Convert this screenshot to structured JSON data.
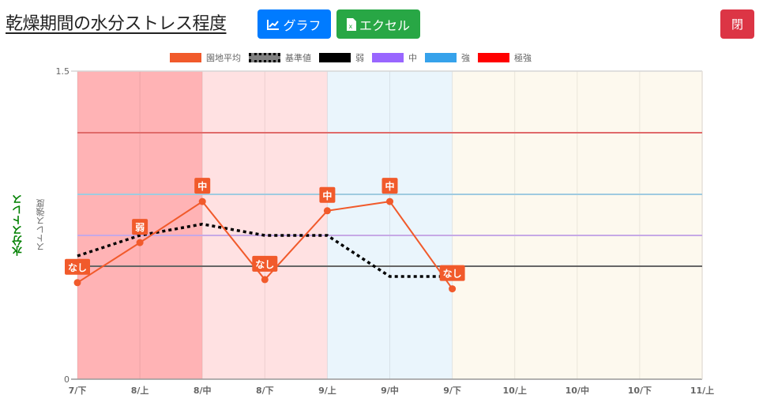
{
  "header": {
    "title": "乾燥期間の水分ストレス程度",
    "graph_button": "グラフ",
    "excel_button": "エクセル",
    "close_button": "閉",
    "colors": {
      "graph": "#007bff",
      "excel": "#28a745",
      "close": "#dc3545"
    }
  },
  "legend": [
    {
      "label": "園地平均",
      "color": "#f15a2b",
      "style": "solid"
    },
    {
      "label": "基準値",
      "color": "#808080",
      "style": "dotted-border"
    },
    {
      "label": "弱",
      "color": "#000000",
      "style": "solid"
    },
    {
      "label": "中",
      "color": "#9966ff",
      "style": "solid"
    },
    {
      "label": "強",
      "color": "#36a2eb",
      "style": "solid"
    },
    {
      "label": "極強",
      "color": "#ff0000",
      "style": "solid"
    }
  ],
  "axis": {
    "y_outer_label": "水分ストレス",
    "y_inner_label": "ストレス強度",
    "y_max_label": "1.5",
    "y_min_label": "0"
  },
  "chart_data": {
    "type": "line",
    "title": "乾燥期間の水分ストレス程度",
    "xlabel": "",
    "ylabel": "ストレス強度",
    "ylim": [
      0,
      1.5
    ],
    "categories": [
      "7/下",
      "8/上",
      "8/中",
      "8/下",
      "9/上",
      "9/中",
      "9/下",
      "10/上",
      "10/中",
      "10/下",
      "11/上"
    ],
    "series": [
      {
        "name": "園地平均",
        "color": "#f15a2b",
        "values": [
          0.47,
          0.665,
          0.865,
          0.485,
          0.82,
          0.865,
          0.44,
          null,
          null,
          null,
          null
        ],
        "point_labels": [
          "なし",
          "弱",
          "中",
          "なし",
          "中",
          "中",
          "なし",
          null,
          null,
          null,
          null
        ]
      },
      {
        "name": "基準値",
        "color": "#000000",
        "style": "dotted",
        "values": [
          0.6,
          0.7,
          0.755,
          0.7,
          0.7,
          0.5,
          0.5,
          null,
          null,
          null,
          null
        ]
      }
    ],
    "thresholds": [
      {
        "name": "弱",
        "value": 0.55,
        "color": "#666666"
      },
      {
        "name": "中",
        "value": 0.7,
        "color": "#c6a9e6"
      },
      {
        "name": "強",
        "value": 0.9,
        "color": "#9fcbe0"
      },
      {
        "name": "極強",
        "value": 1.2,
        "color": "#e06a6a"
      }
    ],
    "background_bands": [
      {
        "from": "7/下",
        "to": "8/中",
        "color": "#ffb3b5"
      },
      {
        "from": "8/中",
        "to": "9/上",
        "color": "#ffe1e2"
      },
      {
        "from": "9/上",
        "to": "9/下",
        "color": "#eaf5fc"
      },
      {
        "from": "9/下",
        "to": "11/上",
        "color": "#fdf9ee"
      }
    ],
    "grid": true,
    "legend_position": "top"
  }
}
